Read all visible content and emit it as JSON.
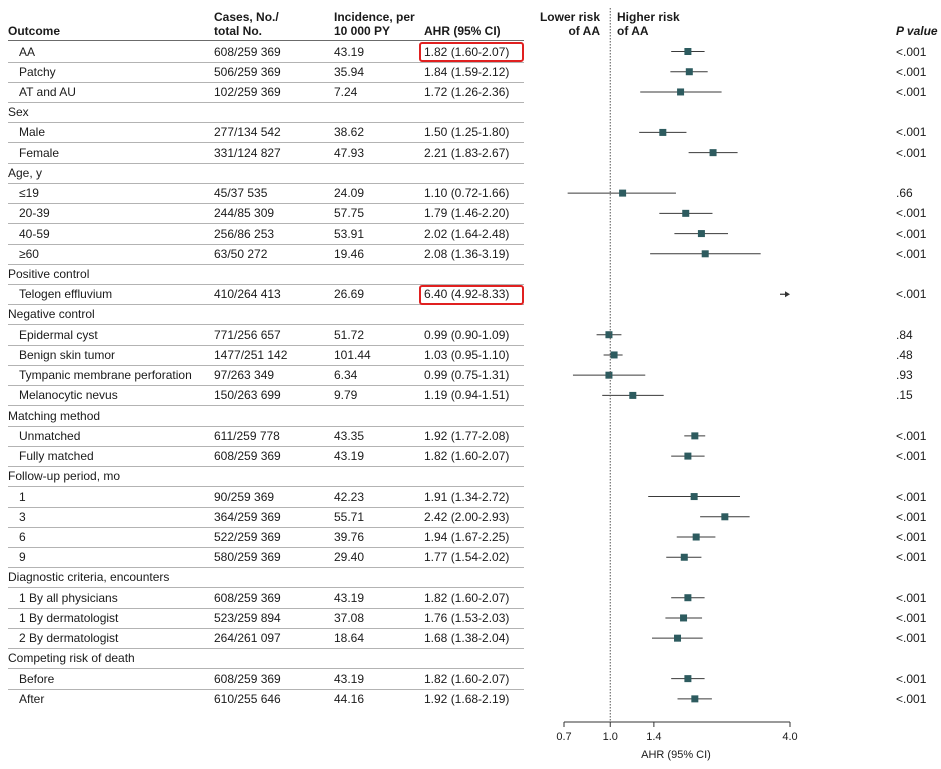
{
  "headers": {
    "outcome": "Outcome",
    "cases_line1": "Cases, No./",
    "cases_line2": "total No.",
    "incidence_line1": "Incidence, per",
    "incidence_line2": "10 000 PY",
    "ahr": "AHR (95% CI)",
    "lower_risk_line1": "Lower risk",
    "lower_risk_line2": "of AA",
    "higher_risk_line1": "Higher risk",
    "higher_risk_line2": "of AA",
    "p_value": "P value"
  },
  "colors": {
    "marker": "#2d5b5f",
    "highlight": "#e02020",
    "ref_line": "#555555"
  },
  "chart_data": {
    "type": "forest",
    "xlabel": "AHR (95% CI)",
    "xscale": "log",
    "xlim": [
      0.7,
      4.0
    ],
    "xticks": [
      "0.7",
      "1.0",
      "1.4",
      "4.0"
    ],
    "reference_value": 1.0,
    "rows": [
      {
        "kind": "item",
        "label": "AA",
        "cases": "608/259 369",
        "incidence": "43.19",
        "ahr": "1.82 (1.60-2.07)",
        "est": 1.82,
        "lo": 1.6,
        "hi": 2.07,
        "p": "<.001",
        "highlight": true
      },
      {
        "kind": "item",
        "label": "Patchy",
        "cases": "506/259 369",
        "incidence": "35.94",
        "ahr": "1.84 (1.59-2.12)",
        "est": 1.84,
        "lo": 1.59,
        "hi": 2.12,
        "p": "<.001"
      },
      {
        "kind": "item",
        "label": "AT and AU",
        "cases": "102/259 369",
        "incidence": "7.24",
        "ahr": "1.72 (1.26-2.36)",
        "est": 1.72,
        "lo": 1.26,
        "hi": 2.36,
        "p": "<.001"
      },
      {
        "kind": "group",
        "label": "Sex"
      },
      {
        "kind": "item",
        "label": "Male",
        "cases": "277/134 542",
        "incidence": "38.62",
        "ahr": "1.50 (1.25-1.80)",
        "est": 1.5,
        "lo": 1.25,
        "hi": 1.8,
        "p": "<.001"
      },
      {
        "kind": "item",
        "label": "Female",
        "cases": "331/124 827",
        "incidence": "47.93",
        "ahr": "2.21 (1.83-2.67)",
        "est": 2.21,
        "lo": 1.83,
        "hi": 2.67,
        "p": "<.001"
      },
      {
        "kind": "group",
        "label": "Age, y"
      },
      {
        "kind": "item",
        "label": "≤19",
        "cases": "45/37 535",
        "incidence": "24.09",
        "ahr": "1.10 (0.72-1.66)",
        "est": 1.1,
        "lo": 0.72,
        "hi": 1.66,
        "p": ".66"
      },
      {
        "kind": "item",
        "label": "20-39",
        "cases": "244/85 309",
        "incidence": "57.75",
        "ahr": "1.79 (1.46-2.20)",
        "est": 1.79,
        "lo": 1.46,
        "hi": 2.2,
        "p": "<.001"
      },
      {
        "kind": "item",
        "label": "40-59",
        "cases": "256/86 253",
        "incidence": "53.91",
        "ahr": "2.02 (1.64-2.48)",
        "est": 2.02,
        "lo": 1.64,
        "hi": 2.48,
        "p": "<.001"
      },
      {
        "kind": "item",
        "label": "≥60",
        "cases": "63/50 272",
        "incidence": "19.46",
        "ahr": "2.08 (1.36-3.19)",
        "est": 2.08,
        "lo": 1.36,
        "hi": 3.19,
        "p": "<.001"
      },
      {
        "kind": "group",
        "label": "Positive control"
      },
      {
        "kind": "item",
        "label": "Telogen effluvium",
        "cases": "410/264 413",
        "incidence": "26.69",
        "ahr": "6.40 (4.92-8.33)",
        "est": 6.4,
        "lo": 4.92,
        "hi": 8.33,
        "p": "<.001",
        "highlight": true,
        "off_scale": true
      },
      {
        "kind": "group",
        "label": "Negative control"
      },
      {
        "kind": "item",
        "label": "Epidermal cyst",
        "cases": "771/256 657",
        "incidence": "51.72",
        "ahr": "0.99 (0.90-1.09)",
        "est": 0.99,
        "lo": 0.9,
        "hi": 1.09,
        "p": ".84"
      },
      {
        "kind": "item",
        "label": "Benign skin tumor",
        "cases": "1477/251 142",
        "incidence": "101.44",
        "ahr": "1.03 (0.95-1.10)",
        "est": 1.03,
        "lo": 0.95,
        "hi": 1.1,
        "p": ".48"
      },
      {
        "kind": "item",
        "label": "Tympanic membrane perforation",
        "cases": "97/263 349",
        "incidence": "6.34",
        "ahr": "0.99 (0.75-1.31)",
        "est": 0.99,
        "lo": 0.75,
        "hi": 1.31,
        "p": ".93"
      },
      {
        "kind": "item",
        "label": "Melanocytic nevus",
        "cases": "150/263 699",
        "incidence": "9.79",
        "ahr": "1.19 (0.94-1.51)",
        "est": 1.19,
        "lo": 0.94,
        "hi": 1.51,
        "p": ".15"
      },
      {
        "kind": "group",
        "label": "Matching method"
      },
      {
        "kind": "item",
        "label": "Unmatched",
        "cases": "611/259 778",
        "incidence": "43.35",
        "ahr": "1.92 (1.77-2.08)",
        "est": 1.92,
        "lo": 1.77,
        "hi": 2.08,
        "p": "<.001"
      },
      {
        "kind": "item",
        "label": "Fully matched",
        "cases": "608/259 369",
        "incidence": "43.19",
        "ahr": "1.82 (1.60-2.07)",
        "est": 1.82,
        "lo": 1.6,
        "hi": 2.07,
        "p": "<.001"
      },
      {
        "kind": "group",
        "label": "Follow-up period, mo"
      },
      {
        "kind": "item",
        "label": "1",
        "cases": "90/259 369",
        "incidence": "42.23",
        "ahr": "1.91 (1.34-2.72)",
        "est": 1.91,
        "lo": 1.34,
        "hi": 2.72,
        "p": "<.001"
      },
      {
        "kind": "item",
        "label": "3",
        "cases": "364/259 369",
        "incidence": "55.71",
        "ahr": "2.42 (2.00-2.93)",
        "est": 2.42,
        "lo": 2.0,
        "hi": 2.93,
        "p": "<.001"
      },
      {
        "kind": "item",
        "label": "6",
        "cases": "522/259 369",
        "incidence": "39.76",
        "ahr": "1.94 (1.67-2.25)",
        "est": 1.94,
        "lo": 1.67,
        "hi": 2.25,
        "p": "<.001"
      },
      {
        "kind": "item",
        "label": "9",
        "cases": "580/259 369",
        "incidence": "29.40",
        "ahr": "1.77 (1.54-2.02)",
        "est": 1.77,
        "lo": 1.54,
        "hi": 2.02,
        "p": "<.001"
      },
      {
        "kind": "group",
        "label": "Diagnostic criteria, encounters"
      },
      {
        "kind": "item",
        "label": "1 By all physicians",
        "cases": "608/259 369",
        "incidence": "43.19",
        "ahr": "1.82 (1.60-2.07)",
        "est": 1.82,
        "lo": 1.6,
        "hi": 2.07,
        "p": "<.001"
      },
      {
        "kind": "item",
        "label": "1 By dermatologist",
        "cases": "523/259 894",
        "incidence": "37.08",
        "ahr": "1.76 (1.53-2.03)",
        "est": 1.76,
        "lo": 1.53,
        "hi": 2.03,
        "p": "<.001"
      },
      {
        "kind": "item",
        "label": "2 By dermatologist",
        "cases": "264/261 097",
        "incidence": "18.64",
        "ahr": "1.68 (1.38-2.04)",
        "est": 1.68,
        "lo": 1.38,
        "hi": 2.04,
        "p": "<.001"
      },
      {
        "kind": "group",
        "label": "Competing risk of death"
      },
      {
        "kind": "item",
        "label": "Before",
        "cases": "608/259 369",
        "incidence": "43.19",
        "ahr": "1.82 (1.60-2.07)",
        "est": 1.82,
        "lo": 1.6,
        "hi": 2.07,
        "p": "<.001"
      },
      {
        "kind": "item",
        "label": "After",
        "cases": "610/255 646",
        "incidence": "44.16",
        "ahr": "1.92 (1.68-2.19)",
        "est": 1.92,
        "lo": 1.68,
        "hi": 2.19,
        "p": "<.001"
      }
    ]
  }
}
